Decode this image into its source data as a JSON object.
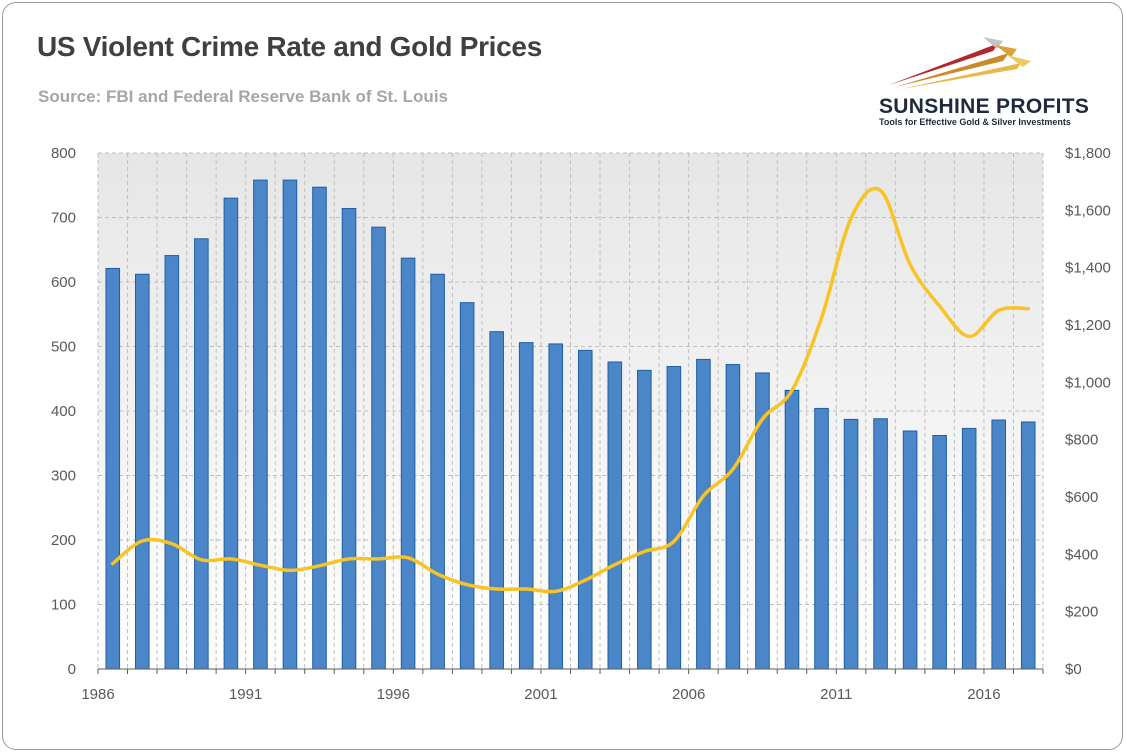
{
  "header": {
    "title": "US Violent Crime Rate and Gold Prices",
    "subtitle": "Source: FBI and Federal Reserve Bank of St. Louis"
  },
  "logo": {
    "name": "SUNSHINE PROFITS",
    "tagline": "Tools for Effective Gold & Silver Investments"
  },
  "colors": {
    "bar_fill": "#4a86c8",
    "bar_edge": "#1f5fa6",
    "line": "#f7c325",
    "plot_bg_top": "#e6e6e6",
    "plot_bg_bottom": "#ffffff",
    "grid": "#bfbfbf"
  },
  "chart_data": {
    "type": "bar+line",
    "title": "US Violent Crime Rate and Gold Prices",
    "years": [
      1986,
      1987,
      1988,
      1989,
      1990,
      1991,
      1992,
      1993,
      1994,
      1995,
      1996,
      1997,
      1998,
      1999,
      2000,
      2001,
      2002,
      2003,
      2004,
      2005,
      2006,
      2007,
      2008,
      2009,
      2010,
      2011,
      2012,
      2013,
      2014,
      2015,
      2016,
      2017
    ],
    "x_tick_labels": [
      "1986",
      "1991",
      "1996",
      "2001",
      "2006",
      "2011",
      "2016"
    ],
    "series": [
      {
        "name": "US Violent Crime Rate",
        "type": "bar",
        "axis": "left",
        "values": [
          621,
          612,
          641,
          667,
          730,
          758,
          758,
          747,
          714,
          685,
          637,
          612,
          568,
          523,
          506,
          504,
          494,
          476,
          463,
          469,
          480,
          472,
          459,
          432,
          404,
          387,
          388,
          369,
          362,
          373,
          386,
          383
        ]
      },
      {
        "name": "Gold Price",
        "type": "line",
        "axis": "right",
        "values": [
          368,
          447,
          437,
          381,
          384,
          362,
          344,
          360,
          384,
          384,
          388,
          331,
          294,
          279,
          279,
          271,
          310,
          364,
          410,
          445,
          604,
          697,
          872,
          972,
          1225,
          1572,
          1669,
          1411,
          1266,
          1160,
          1251,
          1257
        ]
      }
    ],
    "y_left": {
      "min": 0,
      "max": 800,
      "ticks": [
        0,
        100,
        200,
        300,
        400,
        500,
        600,
        700,
        800
      ],
      "labels": [
        "0",
        "100",
        "200",
        "300",
        "400",
        "500",
        "600",
        "700",
        "800"
      ]
    },
    "y_right": {
      "min": 0,
      "max": 1800,
      "ticks": [
        0,
        200,
        400,
        600,
        800,
        1000,
        1200,
        1400,
        1600,
        1800
      ],
      "labels": [
        "$0",
        "$200",
        "$400",
        "$600",
        "$800",
        "$1,000",
        "$1,200",
        "$1,400",
        "$1,600",
        "$1,800"
      ]
    },
    "legend": "none"
  }
}
